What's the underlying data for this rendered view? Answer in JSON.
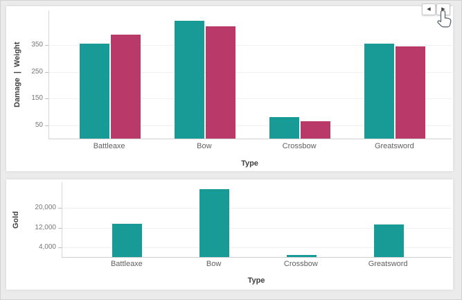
{
  "canvas": {
    "background": "#ebebeb",
    "card_background": "#ffffff",
    "gridline_color": "#efefef",
    "axis_line_color": "#d6d6d6"
  },
  "pagination": {
    "prev_icon": "◀",
    "next_icon": "▶"
  },
  "cursor": {
    "icon": "hand-pointer"
  },
  "chart_data": [
    {
      "type": "bar",
      "title": "",
      "xlabel": "Type",
      "ylabel": "Damage  |  Weight",
      "categories": [
        "Battleaxe",
        "Bow",
        "Crossbow",
        "Greatsword"
      ],
      "series": [
        {
          "name": "Damage",
          "color": "#189a96",
          "values": [
            355,
            440,
            80,
            355
          ]
        },
        {
          "name": "Weight",
          "color": "#b93a68",
          "values": [
            390,
            420,
            65,
            344
          ]
        }
      ],
      "yticks": [
        {
          "value": 50,
          "label": "50"
        },
        {
          "value": 150,
          "label": "150"
        },
        {
          "value": 250,
          "label": "250"
        },
        {
          "value": 350,
          "label": "350"
        }
      ],
      "ylim": [
        0,
        480
      ],
      "grid": true,
      "legend": "none"
    },
    {
      "type": "bar",
      "title": "",
      "xlabel": "Type",
      "ylabel": "Gold",
      "categories": [
        "Battleaxe",
        "Bow",
        "Crossbow",
        "Greatsword"
      ],
      "series": [
        {
          "name": "Gold",
          "color": "#189a96",
          "values": [
            13600,
            27700,
            1000,
            13400
          ]
        }
      ],
      "yticks": [
        {
          "value": 4000,
          "label": "4,000"
        },
        {
          "value": 12000,
          "label": "12,000"
        },
        {
          "value": 20000,
          "label": "20,000"
        }
      ],
      "ylim": [
        0,
        30500
      ],
      "grid": true,
      "legend": "none"
    }
  ]
}
